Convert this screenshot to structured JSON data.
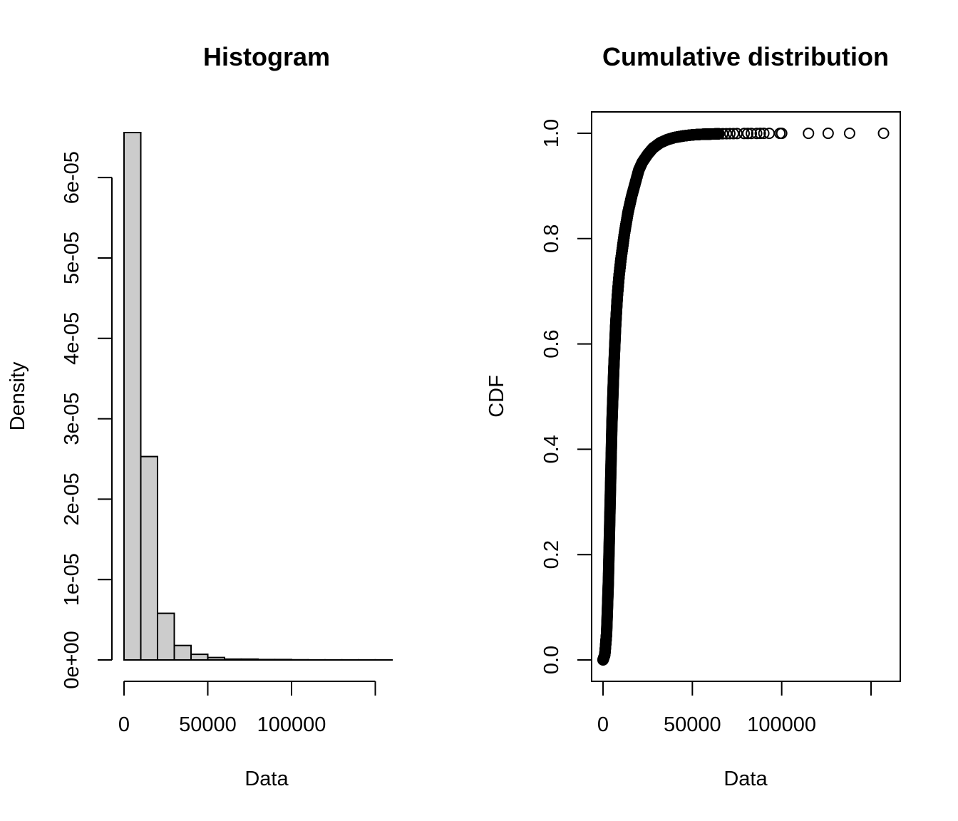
{
  "chart_data": [
    {
      "type": "bar",
      "title": "Histogram",
      "xlabel": "Data",
      "ylabel": "Density",
      "bin_width": 10000,
      "bin_edges": [
        0,
        10000,
        20000,
        30000,
        40000,
        50000,
        60000,
        70000,
        80000,
        90000,
        100000,
        110000,
        120000,
        130000,
        140000,
        150000,
        160000
      ],
      "values": [
        6.56e-05,
        2.53e-05,
        5.8e-06,
        1.8e-06,
        7e-07,
        3e-07,
        1e-07,
        1e-07,
        5e-08,
        5e-08,
        2e-08,
        1e-08,
        1e-08,
        1e-08,
        1e-08,
        1e-08
      ],
      "xlim": [
        0,
        160000
      ],
      "ylim": [
        0,
        6.56e-05
      ],
      "x_ticks": [
        0,
        50000,
        100000,
        150000
      ],
      "x_tick_labels": [
        "0",
        "50000",
        "100000",
        ""
      ],
      "y_ticks": [
        0,
        1e-05,
        2e-05,
        3e-05,
        4e-05,
        5e-05,
        6e-05
      ],
      "y_tick_labels": [
        "0e+00",
        "1e-05",
        "2e-05",
        "3e-05",
        "4e-05",
        "5e-05",
        "6e-05"
      ]
    },
    {
      "type": "scatter",
      "title": "Cumulative distribution",
      "xlabel": "Data",
      "ylabel": "CDF",
      "xlim": [
        0,
        165000
      ],
      "ylim": [
        0,
        1
      ],
      "x_ticks": [
        0,
        50000,
        100000,
        150000
      ],
      "x_tick_labels": [
        "0",
        "50000",
        "100000",
        ""
      ],
      "y_ticks": [
        0,
        0.2,
        0.4,
        0.6,
        0.8,
        1.0
      ],
      "y_tick_labels": [
        "0.0",
        "0.2",
        "0.4",
        "0.6",
        "0.8",
        "1.0"
      ],
      "cdf_curve": {
        "x": [
          0,
          1000,
          2000,
          3000,
          4000,
          5000,
          6000,
          7000,
          8000,
          9000,
          10000,
          11000,
          12000,
          13000,
          14000,
          15000,
          16000,
          18000,
          20000,
          22000,
          25000,
          28000,
          32000,
          36000,
          40000,
          45000,
          50000,
          55000,
          60000,
          65000
        ],
        "y": [
          0.0,
          0.01,
          0.05,
          0.15,
          0.3,
          0.45,
          0.55,
          0.63,
          0.69,
          0.73,
          0.76,
          0.785,
          0.81,
          0.83,
          0.85,
          0.865,
          0.88,
          0.905,
          0.93,
          0.945,
          0.96,
          0.972,
          0.982,
          0.988,
          0.992,
          0.995,
          0.997,
          0.998,
          0.9985,
          0.999
        ]
      },
      "tail_points": {
        "x": [
          67000,
          69000,
          71000,
          73000,
          75000,
          79000,
          81000,
          83000,
          86000,
          88000,
          90000,
          93000,
          99000,
          100000,
          115000,
          126000,
          138000,
          157000
        ],
        "y": [
          0.9991,
          0.9992,
          0.9993,
          0.9994,
          0.9995,
          0.9996,
          0.9996,
          0.9997,
          0.9997,
          0.9998,
          0.9998,
          0.9998,
          0.9999,
          0.9999,
          0.9999,
          0.99995,
          0.99998,
          1.0
        ]
      }
    }
  ]
}
